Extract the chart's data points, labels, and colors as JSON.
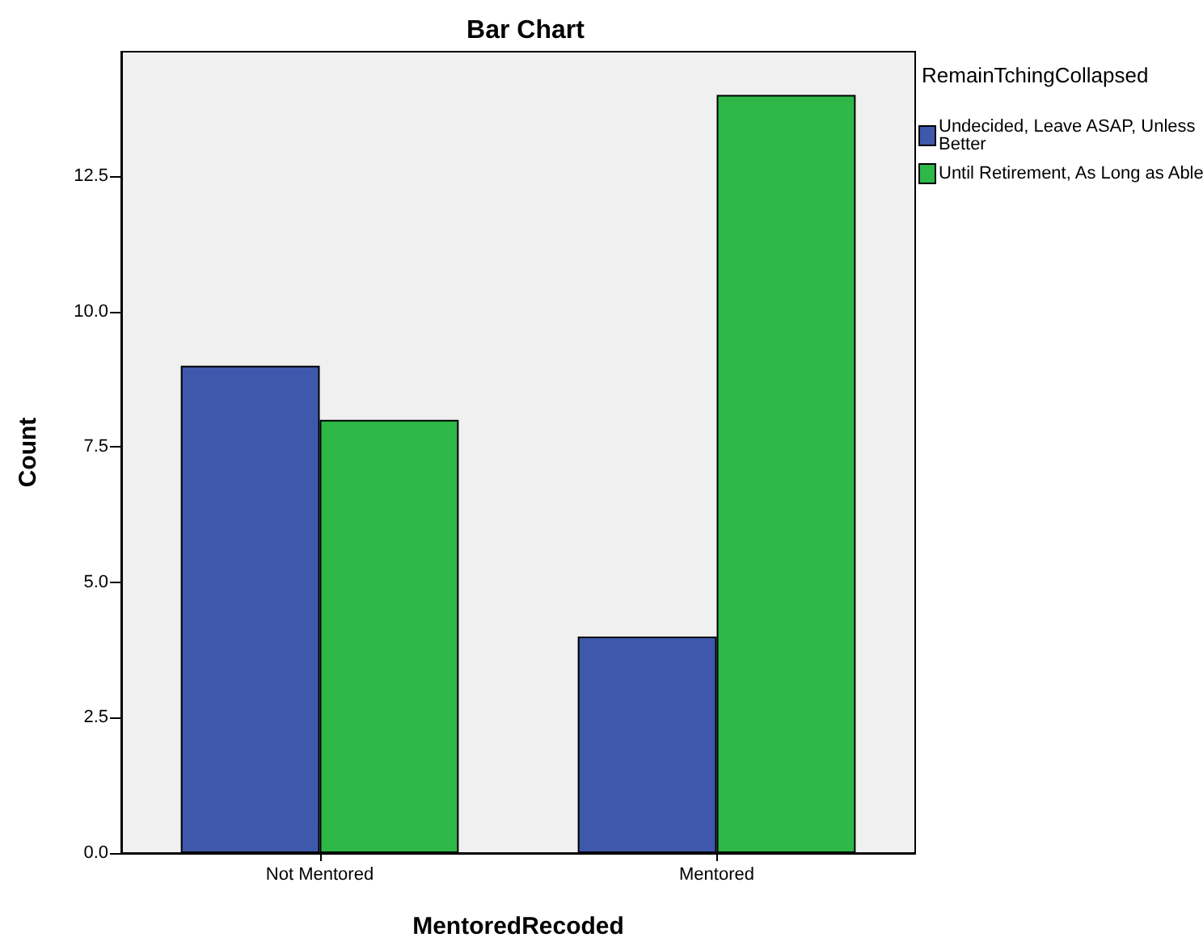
{
  "chart_data": {
    "type": "bar",
    "title": "Bar Chart",
    "xlabel": "MentoredRecoded",
    "ylabel": "Count",
    "legend_title": "RemainTchingCollapsed",
    "categories": [
      "Not Mentored",
      "Mentored"
    ],
    "series": [
      {
        "name": "Undecided, Leave ASAP, Unless Better",
        "color": "#3e58ac",
        "values": [
          9,
          4
        ]
      },
      {
        "name": "Until Retirement, As Long as Able",
        "color": "#2eb848",
        "values": [
          8,
          14
        ]
      }
    ],
    "ylim": [
      0,
      14.8
    ],
    "yticks": [
      {
        "value": 0,
        "label": "0.0"
      },
      {
        "value": 2.5,
        "label": "2.5"
      },
      {
        "value": 5,
        "label": "5.0"
      },
      {
        "value": 7.5,
        "label": "7.5"
      },
      {
        "value": 10,
        "label": "10.0"
      },
      {
        "value": 12.5,
        "label": "12.5"
      }
    ],
    "grid": false,
    "legend": "top right"
  }
}
